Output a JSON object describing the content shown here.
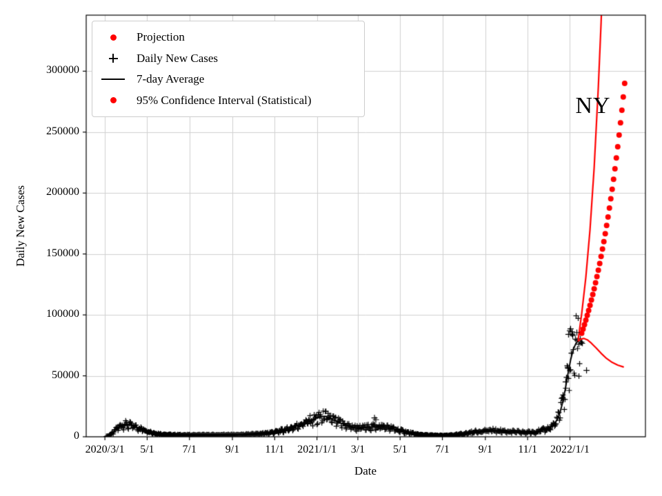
{
  "chart_data": {
    "type": "line",
    "annotation": "NY",
    "xlabel": "Date",
    "ylabel": "Daily New Cases",
    "x_unit": "days since 2020/3/1",
    "xlim_days": [
      -27,
      780
    ],
    "ylim": [
      0,
      346000
    ],
    "grid": true,
    "grid_color": "#cfcfcf",
    "background": "#ffffff",
    "colors": {
      "projection": "#ff0000",
      "cases": "#000000",
      "average": "#000000"
    },
    "legend_position": "upper left",
    "legend": [
      {
        "label": "Projection",
        "marker": "dot",
        "color": "#ff0000"
      },
      {
        "label": "Daily New Cases",
        "marker": "plus",
        "color": "#000000"
      },
      {
        "label": "7-day Average",
        "marker": "line",
        "color": "#000000"
      },
      {
        "label": "95% Confidence Interval (Statistical)",
        "marker": "dot",
        "color": "#ff0000"
      }
    ],
    "x_ticks": [
      {
        "day": 0,
        "label": "2020/3/1"
      },
      {
        "day": 61,
        "label": "5/1"
      },
      {
        "day": 122,
        "label": "7/1"
      },
      {
        "day": 184,
        "label": "9/1"
      },
      {
        "day": 245,
        "label": "11/1"
      },
      {
        "day": 306,
        "label": "2021/1/1"
      },
      {
        "day": 365,
        "label": "3/1"
      },
      {
        "day": 426,
        "label": "5/1"
      },
      {
        "day": 487,
        "label": "7/1"
      },
      {
        "day": 549,
        "label": "9/1"
      },
      {
        "day": 610,
        "label": "11/1"
      },
      {
        "day": 671,
        "label": "2022/1/1"
      }
    ],
    "y_ticks": [
      {
        "value": 0,
        "label": "0"
      },
      {
        "value": 50000,
        "label": "50000"
      },
      {
        "value": 100000,
        "label": "100000"
      },
      {
        "value": 150000,
        "label": "150000"
      },
      {
        "value": 200000,
        "label": "200000"
      },
      {
        "value": 250000,
        "label": "250000"
      },
      {
        "value": 300000,
        "label": "300000"
      }
    ],
    "series": [
      {
        "name": "7-day Average",
        "type": "line",
        "color": "#000000",
        "width": 2,
        "points": [
          [
            0,
            100
          ],
          [
            5,
            600
          ],
          [
            10,
            2500
          ],
          [
            15,
            5500
          ],
          [
            20,
            8200
          ],
          [
            25,
            9600
          ],
          [
            30,
            10200
          ],
          [
            35,
            9700
          ],
          [
            40,
            8900
          ],
          [
            45,
            8000
          ],
          [
            50,
            7000
          ],
          [
            55,
            6000
          ],
          [
            61,
            5000
          ],
          [
            70,
            3200
          ],
          [
            80,
            2200
          ],
          [
            90,
            1700
          ],
          [
            105,
            1500
          ],
          [
            122,
            1400
          ],
          [
            140,
            1500
          ],
          [
            160,
            1500
          ],
          [
            184,
            1600
          ],
          [
            200,
            1800
          ],
          [
            215,
            2200
          ],
          [
            230,
            2800
          ],
          [
            245,
            3800
          ],
          [
            255,
            5000
          ],
          [
            265,
            6500
          ],
          [
            275,
            8500
          ],
          [
            285,
            11000
          ],
          [
            295,
            13200
          ],
          [
            306,
            15200
          ],
          [
            312,
            16200
          ],
          [
            318,
            16800
          ],
          [
            324,
            15600
          ],
          [
            330,
            13600
          ],
          [
            340,
            11200
          ],
          [
            350,
            9200
          ],
          [
            358,
            7900
          ],
          [
            365,
            7300
          ],
          [
            372,
            7500
          ],
          [
            380,
            7900
          ],
          [
            388,
            8300
          ],
          [
            395,
            8500
          ],
          [
            402,
            8300
          ],
          [
            410,
            7500
          ],
          [
            418,
            6300
          ],
          [
            426,
            5100
          ],
          [
            434,
            3900
          ],
          [
            442,
            2900
          ],
          [
            450,
            2100
          ],
          [
            460,
            1500
          ],
          [
            470,
            1150
          ],
          [
            487,
            950
          ],
          [
            495,
            1050
          ],
          [
            505,
            1450
          ],
          [
            515,
            2200
          ],
          [
            525,
            3200
          ],
          [
            535,
            4200
          ],
          [
            549,
            5000
          ],
          [
            558,
            5300
          ],
          [
            565,
            5100
          ],
          [
            575,
            4700
          ],
          [
            585,
            4300
          ],
          [
            595,
            3950
          ],
          [
            605,
            3700
          ],
          [
            612,
            3650
          ],
          [
            620,
            4100
          ],
          [
            628,
            4900
          ],
          [
            635,
            5900
          ],
          [
            641,
            7200
          ],
          [
            647,
            9500
          ],
          [
            652,
            13500
          ],
          [
            656,
            18500
          ],
          [
            660,
            27000
          ],
          [
            664,
            38000
          ],
          [
            668,
            51000
          ],
          [
            672,
            63000
          ],
          [
            676,
            72000
          ],
          [
            680,
            77000
          ],
          [
            683,
            78500
          ]
        ]
      },
      {
        "name": "Projection (trend)",
        "type": "line",
        "color": "#ff0000",
        "width": 2.2,
        "points": [
          [
            683,
            80000
          ],
          [
            688,
            101000
          ],
          [
            694,
            131000
          ],
          [
            700,
            170000
          ],
          [
            706,
            221000
          ],
          [
            712,
            287000
          ],
          [
            716,
            340000
          ],
          [
            718,
            372000
          ]
        ]
      },
      {
        "name": "Projection (7-day average forecast)",
        "type": "line",
        "color": "#ff0000",
        "width": 2.2,
        "points": [
          [
            683,
            78500
          ],
          [
            687,
            80200
          ],
          [
            691,
            80700
          ],
          [
            696,
            79600
          ],
          [
            702,
            76800
          ],
          [
            709,
            72800
          ],
          [
            716,
            68500
          ],
          [
            724,
            64200
          ],
          [
            732,
            61000
          ],
          [
            740,
            58800
          ],
          [
            748,
            57300
          ]
        ]
      },
      {
        "name": "95% Confidence Interval (Statistical)",
        "type": "scatter-dot",
        "color": "#ff0000",
        "radius": 4,
        "points": [
          [
            688,
            85000
          ],
          [
            690,
            88400
          ],
          [
            692,
            92000
          ],
          [
            694,
            95700
          ],
          [
            696,
            99600
          ],
          [
            698,
            103600
          ],
          [
            700,
            107800
          ],
          [
            702,
            112200
          ],
          [
            704,
            116700
          ],
          [
            706,
            121400
          ],
          [
            708,
            126300
          ],
          [
            710,
            131400
          ],
          [
            712,
            136700
          ],
          [
            714,
            142200
          ],
          [
            716,
            148000
          ],
          [
            718,
            154000
          ],
          [
            720,
            160200
          ],
          [
            722,
            166700
          ],
          [
            724,
            173400
          ],
          [
            726,
            180400
          ],
          [
            728,
            187700
          ],
          [
            730,
            195300
          ],
          [
            732,
            203100
          ],
          [
            734,
            211300
          ],
          [
            736,
            219900
          ],
          [
            738,
            228800
          ],
          [
            740,
            238000
          ],
          [
            742,
            247600
          ],
          [
            744,
            257600
          ],
          [
            746,
            268000
          ],
          [
            748,
            278900
          ],
          [
            750,
            290100
          ]
        ]
      },
      {
        "name": "Daily New Cases (notable points)",
        "type": "scatter-plus",
        "color": "#000000",
        "arm": 4,
        "points": [
          [
            389,
            15500
          ],
          [
            391,
            14000
          ],
          [
            665,
            45000
          ],
          [
            668,
            57000
          ],
          [
            669,
            84000
          ],
          [
            671,
            87000
          ],
          [
            672,
            88500
          ],
          [
            674,
            86000
          ],
          [
            675,
            83000
          ],
          [
            681,
            85500
          ],
          [
            684,
            76000
          ],
          [
            695,
            54500
          ]
        ]
      }
    ],
    "daily_cases_render": {
      "source_series": "7-day Average",
      "start_day": 2,
      "end_day": 689,
      "noise_amplitude": 0.45,
      "weekend_factor": 0.75,
      "weekday_boost": 1.06
    }
  }
}
